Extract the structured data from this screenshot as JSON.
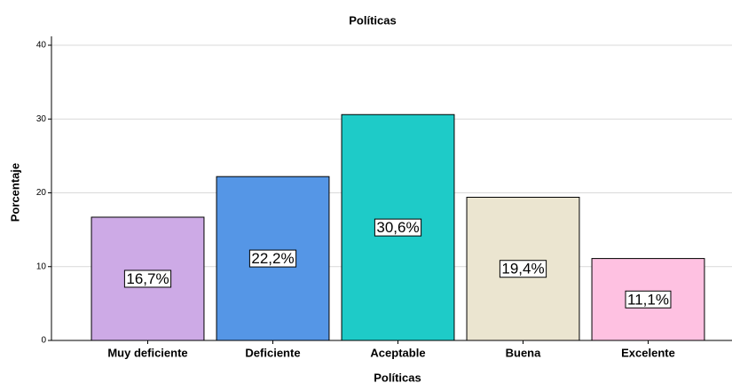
{
  "chart_data": {
    "type": "bar",
    "title": "Políticas",
    "x_label": "Políticas",
    "y_label": "Porcentaje",
    "categories": [
      "Muy deficiente",
      "Deficiente",
      "Aceptable",
      "Buena",
      "Excelente"
    ],
    "values": [
      16.7,
      22.2,
      30.6,
      19.4,
      11.1
    ],
    "value_labels": [
      "16,7%",
      "22,2%",
      "30,6%",
      "19,4%",
      "11,1%"
    ],
    "colors": [
      "#cdaae6",
      "#5596e6",
      "#1ecbc8",
      "#ebe5d0",
      "#fec1e1"
    ],
    "ylim": [
      0,
      40
    ],
    "yticks": [
      0,
      10,
      20,
      30,
      40
    ],
    "grid": true
  }
}
